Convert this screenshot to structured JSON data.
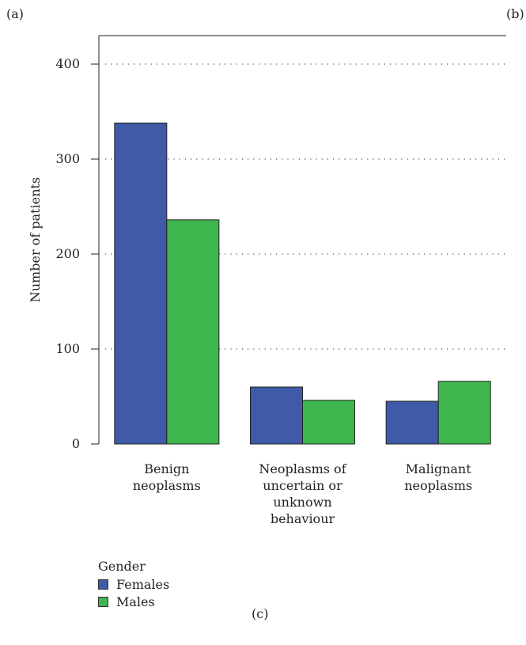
{
  "panel_labels": {
    "a": "(a)",
    "b": "(b)",
    "c": "(c)"
  },
  "colors": {
    "Females": "#3f5aa6",
    "Males": "#3fb54e"
  },
  "chart_data": {
    "type": "bar",
    "ylabel": "Number of patients",
    "xlabel": "",
    "ylim": [
      0,
      430
    ],
    "yticks": [
      0,
      100,
      200,
      300,
      400
    ],
    "grid": true,
    "categories": [
      [
        "Benign",
        "neoplasms"
      ],
      [
        "Neoplasms of",
        "uncertain or",
        "unknown",
        "behaviour"
      ],
      [
        "Malignant",
        "neoplasms"
      ]
    ],
    "series": [
      {
        "name": "Females",
        "values": [
          338,
          60,
          45
        ]
      },
      {
        "name": "Males",
        "values": [
          236,
          46,
          66
        ]
      }
    ]
  },
  "legend": {
    "title": "Gender",
    "items": [
      "Females",
      "Males"
    ]
  }
}
